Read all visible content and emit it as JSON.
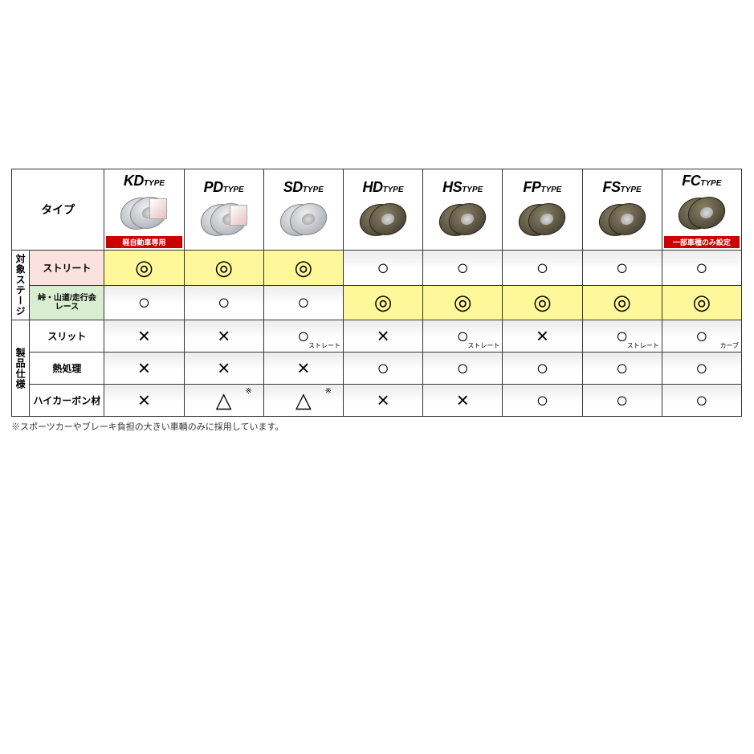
{
  "corner_label": "タイプ",
  "types": [
    {
      "code": "KD",
      "suffix": "TYPE",
      "badge": "軽自動車専用",
      "dark": false,
      "box": true
    },
    {
      "code": "PD",
      "suffix": "TYPE",
      "badge": "",
      "dark": false,
      "box": true
    },
    {
      "code": "SD",
      "suffix": "TYPE",
      "badge": "",
      "dark": false,
      "box": false
    },
    {
      "code": "HD",
      "suffix": "TYPE",
      "badge": "",
      "dark": true,
      "box": false
    },
    {
      "code": "HS",
      "suffix": "TYPE",
      "badge": "",
      "dark": true,
      "box": false
    },
    {
      "code": "FP",
      "suffix": "TYPE",
      "badge": "",
      "dark": true,
      "box": false
    },
    {
      "code": "FS",
      "suffix": "TYPE",
      "badge": "",
      "dark": true,
      "box": false
    },
    {
      "code": "FC",
      "suffix": "TYPE",
      "badge": "一部車種のみ設定",
      "dark": true,
      "box": false
    }
  ],
  "section1": {
    "header": "対象ステージ",
    "rows": [
      {
        "label": "ストリート",
        "class": "pink",
        "cells": [
          {
            "m": "◎",
            "hl": true
          },
          {
            "m": "◎",
            "hl": true
          },
          {
            "m": "◎",
            "hl": true
          },
          {
            "m": "○",
            "hl": false
          },
          {
            "m": "○",
            "hl": false
          },
          {
            "m": "○",
            "hl": false
          },
          {
            "m": "○",
            "hl": false
          },
          {
            "m": "○",
            "hl": false
          }
        ]
      },
      {
        "label": "峠・山道/走行会",
        "label2": "レース",
        "class": "green",
        "cells": [
          {
            "m": "○",
            "hl": false
          },
          {
            "m": "○",
            "hl": false
          },
          {
            "m": "○",
            "hl": false
          },
          {
            "m": "◎",
            "hl": true
          },
          {
            "m": "◎",
            "hl": true
          },
          {
            "m": "◎",
            "hl": true
          },
          {
            "m": "◎",
            "hl": true
          },
          {
            "m": "◎",
            "hl": true
          }
        ]
      }
    ]
  },
  "section2": {
    "header": "製品仕様",
    "rows": [
      {
        "label": "スリット",
        "cells": [
          {
            "m": "×"
          },
          {
            "m": "×"
          },
          {
            "m": "○",
            "sub": "ストレート"
          },
          {
            "m": "×"
          },
          {
            "m": "○",
            "sub": "ストレート"
          },
          {
            "m": "×"
          },
          {
            "m": "○",
            "sub": "ストレート"
          },
          {
            "m": "○",
            "sub": "カーブ"
          }
        ]
      },
      {
        "label": "熱処理",
        "cells": [
          {
            "m": "×"
          },
          {
            "m": "×"
          },
          {
            "m": "×"
          },
          {
            "m": "○"
          },
          {
            "m": "○"
          },
          {
            "m": "○"
          },
          {
            "m": "○"
          },
          {
            "m": "○"
          }
        ]
      },
      {
        "label": "ハイカーボン材",
        "cells": [
          {
            "m": "×"
          },
          {
            "m": "△",
            "sup": "※"
          },
          {
            "m": "△",
            "sup": "※"
          },
          {
            "m": "×"
          },
          {
            "m": "×"
          },
          {
            "m": "○"
          },
          {
            "m": "○"
          },
          {
            "m": "○"
          }
        ]
      }
    ]
  },
  "footnote": "※スポーツカーやブレーキ負担の大きい車輌のみに採用しています。",
  "colors": {
    "highlight": "#fff89a",
    "pink": "#fce2de",
    "green": "#d9edd0",
    "badge": "#cc0000",
    "border": "#333333"
  }
}
